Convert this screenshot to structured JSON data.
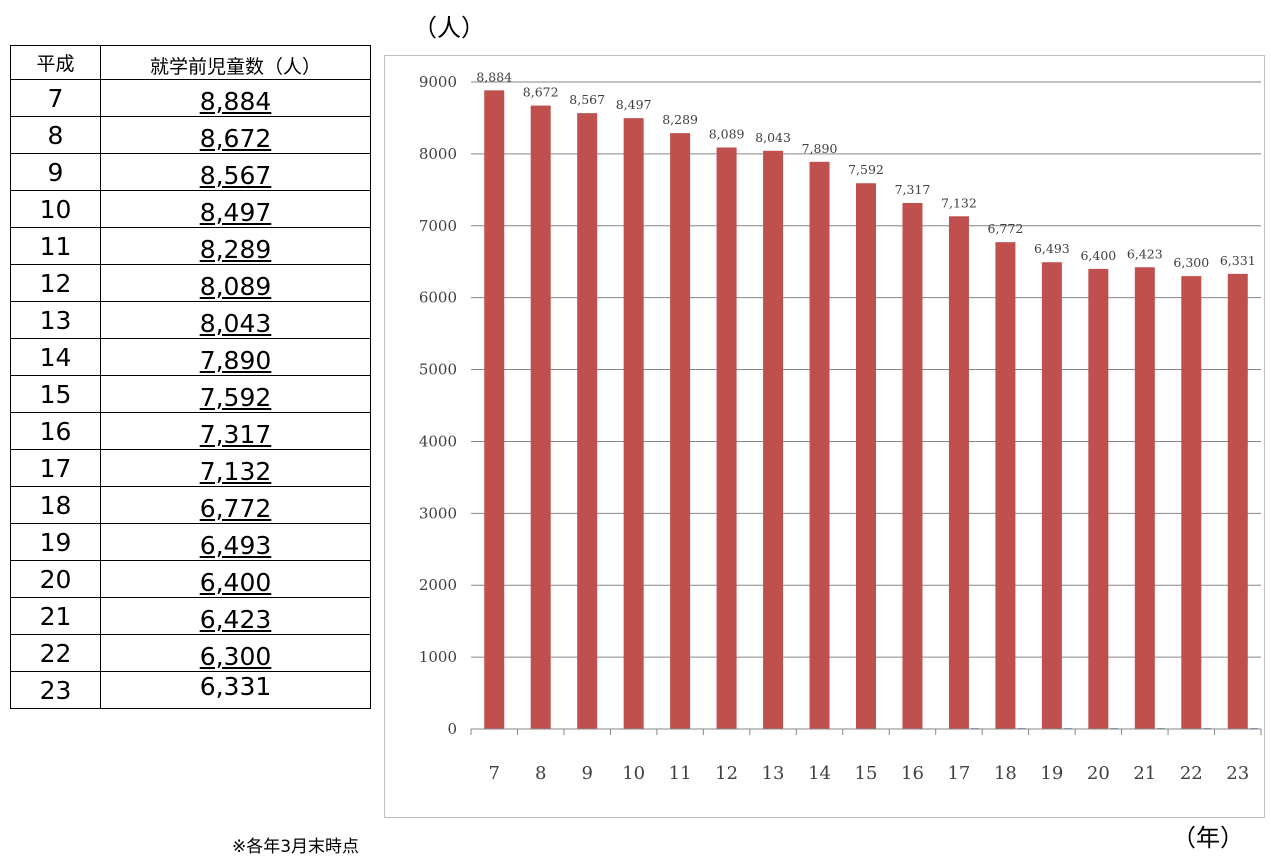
{
  "table": {
    "header_year": "平成",
    "header_count": "就学前児童数（人）",
    "rows": [
      {
        "year": "7",
        "count": "8,884"
      },
      {
        "year": "8",
        "count": "8,672"
      },
      {
        "year": "9",
        "count": "8,567"
      },
      {
        "year": "10",
        "count": "8,497"
      },
      {
        "year": "11",
        "count": "8,289"
      },
      {
        "year": "12",
        "count": "8,089"
      },
      {
        "year": "13",
        "count": "8,043"
      },
      {
        "year": "14",
        "count": "7,890"
      },
      {
        "year": "15",
        "count": "7,592"
      },
      {
        "year": "16",
        "count": "7,317"
      },
      {
        "year": "17",
        "count": "7,132"
      },
      {
        "year": "18",
        "count": "6,772"
      },
      {
        "year": "19",
        "count": "6,493"
      },
      {
        "year": "20",
        "count": "6,400"
      },
      {
        "year": "21",
        "count": "6,423"
      },
      {
        "year": "22",
        "count": "6,300"
      },
      {
        "year": "23",
        "count": "6,331"
      }
    ]
  },
  "note": "※各年3月末時点",
  "chart_data": {
    "type": "bar",
    "title": "",
    "xlabel": "（年）",
    "ylabel": "（人）",
    "ylim": [
      0,
      9000
    ],
    "y_ticks": [
      "0",
      "1000",
      "2000",
      "3000",
      "4000",
      "5000",
      "6000",
      "7000",
      "8000",
      "9000"
    ],
    "grid": true,
    "categories": [
      "7",
      "8",
      "9",
      "10",
      "11",
      "12",
      "13",
      "14",
      "15",
      "16",
      "17",
      "18",
      "19",
      "20",
      "21",
      "22",
      "23"
    ],
    "series": [
      {
        "color": "#c0504d",
        "values": [
          8884,
          8672,
          8567,
          8497,
          8289,
          8089,
          8043,
          7890,
          7592,
          7317,
          7132,
          6772,
          6493,
          6400,
          6423,
          6300,
          6331
        ],
        "data_labels": [
          "8,884",
          "8,672",
          "8,567",
          "8,497",
          "8,289",
          "8,089",
          "8,043",
          "7,890",
          "7,592",
          "7,317",
          "7,132",
          "6,772",
          "6,493",
          "6,400",
          "6,423",
          "6,300",
          "6,331"
        ]
      },
      {
        "color": "#4f81bd",
        "values": [
          0,
          0,
          0,
          0,
          0,
          0,
          0,
          0,
          0,
          0,
          12,
          12,
          12,
          12,
          12,
          12,
          12
        ]
      }
    ]
  }
}
